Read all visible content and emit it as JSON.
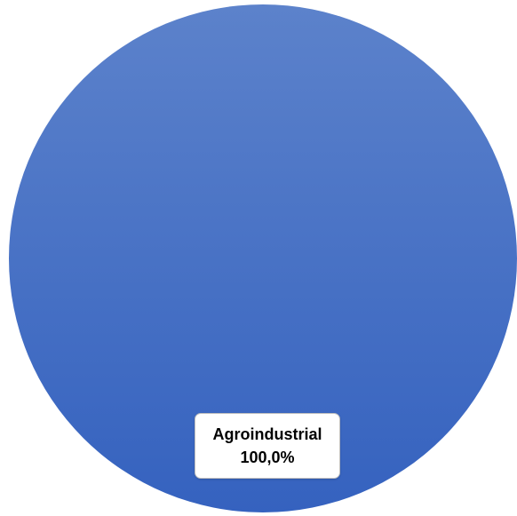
{
  "chart_data": {
    "type": "pie",
    "title": "",
    "categories": [
      "Agroindustrial"
    ],
    "values": [
      100.0
    ],
    "value_labels": [
      "100,0%"
    ],
    "colors": {
      "slice_top": "#5c82cb",
      "slice_bottom": "#3562bf"
    },
    "legend": "none"
  }
}
